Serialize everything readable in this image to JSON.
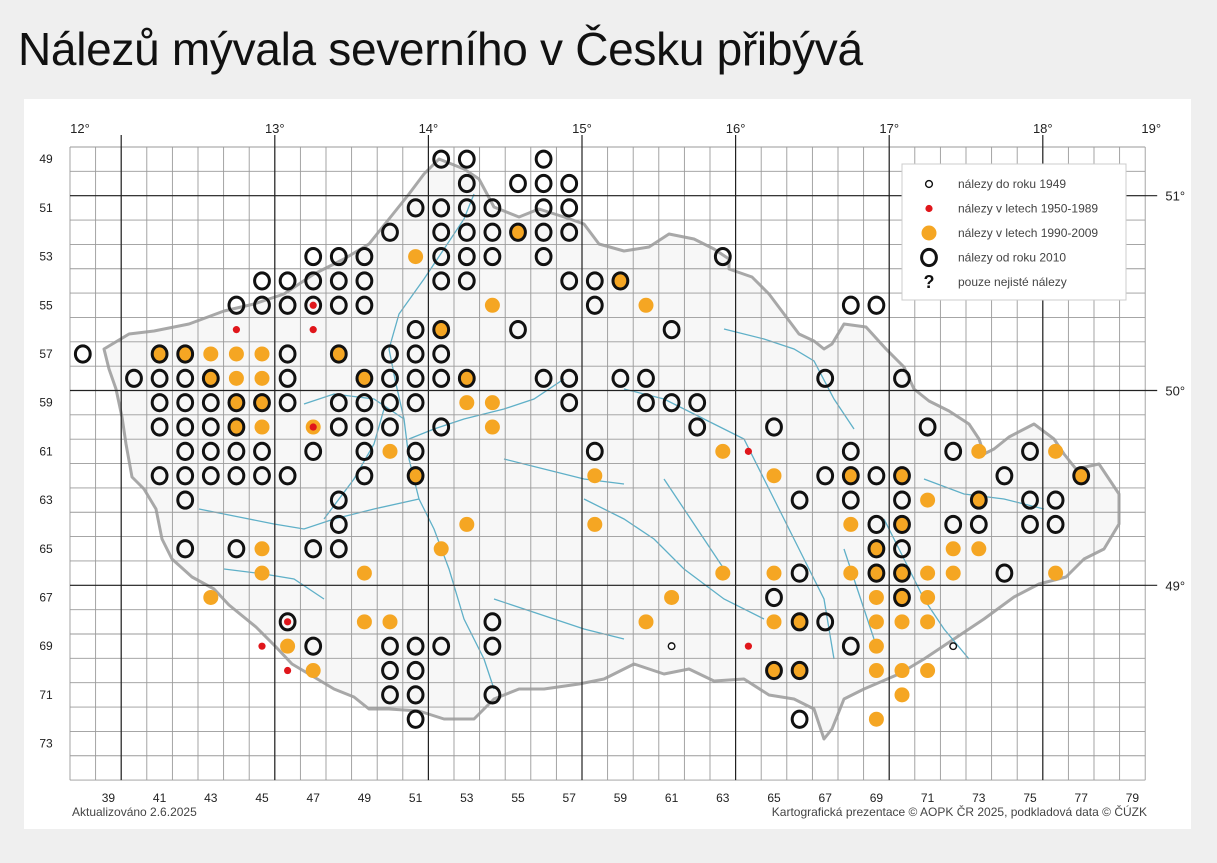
{
  "title": "Nálezů mývala severního v Česku přibývá",
  "footer": {
    "updated": "Aktualizováno 2.6.2025",
    "credit": "Kartografická prezentace © AOPK ČR 2025, podkladová data © ČÚZK"
  },
  "legend": [
    {
      "key": "pre1949",
      "label": "nálezy do roku 1949"
    },
    {
      "key": "r1950",
      "label": "nálezy v letech 1950-1989"
    },
    {
      "key": "r1990",
      "label": "nálezy v letech 1990-2009"
    },
    {
      "key": "post2010",
      "label": "nálezy od roku 2010"
    },
    {
      "key": "uncertain",
      "label": "pouze nejisté nálezy",
      "symbol": "?"
    }
  ],
  "colors": {
    "orange": "#f5a623",
    "red": "#e0161b",
    "ring": "#111111",
    "grid": "#9a9a9a",
    "major_grid": "#222222",
    "rivers": "#5fb0c8",
    "border": "#9a9a9a"
  },
  "axes": {
    "top_lon": [
      "12°",
      "13°",
      "14°",
      "15°",
      "16°",
      "17°",
      "18°",
      "19°"
    ],
    "right_lat": [
      "51°",
      "50°",
      "49°"
    ],
    "left_rows": [
      "49",
      "51",
      "53",
      "55",
      "57",
      "59",
      "61",
      "63",
      "65",
      "67",
      "69",
      "71",
      "73"
    ],
    "bottom_cols": [
      "39",
      "41",
      "43",
      "45",
      "47",
      "49",
      "51",
      "53",
      "55",
      "57",
      "59",
      "61",
      "63",
      "65",
      "67",
      "69",
      "71",
      "73",
      "75",
      "77",
      "79"
    ]
  },
  "grid": {
    "col_start": 38,
    "col_end": 80,
    "row_start": 48,
    "row_end": 74
  },
  "findings": {
    "ring": [
      [
        52,
        48
      ],
      [
        53,
        48
      ],
      [
        56,
        48
      ],
      [
        53,
        49
      ],
      [
        55,
        49
      ],
      [
        56,
        49
      ],
      [
        57,
        49
      ],
      [
        51,
        50
      ],
      [
        52,
        50
      ],
      [
        53,
        50
      ],
      [
        54,
        50
      ],
      [
        56,
        50
      ],
      [
        57,
        50
      ],
      [
        50,
        51
      ],
      [
        52,
        51
      ],
      [
        53,
        51
      ],
      [
        54,
        51
      ],
      [
        55,
        51
      ],
      [
        56,
        51
      ],
      [
        57,
        51
      ],
      [
        47,
        52
      ],
      [
        48,
        52
      ],
      [
        49,
        52
      ],
      [
        52,
        52
      ],
      [
        53,
        52
      ],
      [
        54,
        52
      ],
      [
        56,
        52
      ],
      [
        63,
        52
      ],
      [
        45,
        53
      ],
      [
        46,
        53
      ],
      [
        47,
        53
      ],
      [
        48,
        53
      ],
      [
        49,
        53
      ],
      [
        52,
        53
      ],
      [
        53,
        53
      ],
      [
        57,
        53
      ],
      [
        58,
        53
      ],
      [
        59,
        53
      ],
      [
        44,
        54
      ],
      [
        45,
        54
      ],
      [
        46,
        54
      ],
      [
        47,
        54
      ],
      [
        48,
        54
      ],
      [
        49,
        54
      ],
      [
        58,
        54
      ],
      [
        68,
        54
      ],
      [
        69,
        54
      ],
      [
        51,
        55
      ],
      [
        52,
        55
      ],
      [
        55,
        55
      ],
      [
        61,
        55
      ],
      [
        38,
        56
      ],
      [
        41,
        56
      ],
      [
        42,
        56
      ],
      [
        46,
        56
      ],
      [
        48,
        56
      ],
      [
        50,
        56
      ],
      [
        51,
        56
      ],
      [
        52,
        56
      ],
      [
        40,
        57
      ],
      [
        41,
        57
      ],
      [
        42,
        57
      ],
      [
        43,
        57
      ],
      [
        46,
        57
      ],
      [
        49,
        57
      ],
      [
        50,
        57
      ],
      [
        51,
        57
      ],
      [
        52,
        57
      ],
      [
        53,
        57
      ],
      [
        56,
        57
      ],
      [
        57,
        57
      ],
      [
        59,
        57
      ],
      [
        60,
        57
      ],
      [
        67,
        57
      ],
      [
        70,
        57
      ],
      [
        41,
        58
      ],
      [
        42,
        58
      ],
      [
        43,
        58
      ],
      [
        44,
        58
      ],
      [
        45,
        58
      ],
      [
        46,
        58
      ],
      [
        48,
        58
      ],
      [
        49,
        58
      ],
      [
        50,
        58
      ],
      [
        51,
        58
      ],
      [
        57,
        58
      ],
      [
        60,
        58
      ],
      [
        61,
        58
      ],
      [
        62,
        58
      ],
      [
        41,
        59
      ],
      [
        42,
        59
      ],
      [
        43,
        59
      ],
      [
        44,
        59
      ],
      [
        48,
        59
      ],
      [
        49,
        59
      ],
      [
        50,
        59
      ],
      [
        52,
        59
      ],
      [
        62,
        59
      ],
      [
        65,
        59
      ],
      [
        71,
        59
      ],
      [
        42,
        60
      ],
      [
        43,
        60
      ],
      [
        44,
        60
      ],
      [
        45,
        60
      ],
      [
        47,
        60
      ],
      [
        49,
        60
      ],
      [
        51,
        60
      ],
      [
        58,
        60
      ],
      [
        68,
        60
      ],
      [
        72,
        60
      ],
      [
        75,
        60
      ],
      [
        41,
        61
      ],
      [
        42,
        61
      ],
      [
        43,
        61
      ],
      [
        44,
        61
      ],
      [
        45,
        61
      ],
      [
        46,
        61
      ],
      [
        49,
        61
      ],
      [
        51,
        61
      ],
      [
        67,
        61
      ],
      [
        68,
        61
      ],
      [
        69,
        61
      ],
      [
        70,
        61
      ],
      [
        74,
        61
      ],
      [
        77,
        61
      ],
      [
        42,
        62
      ],
      [
        48,
        62
      ],
      [
        66,
        62
      ],
      [
        68,
        62
      ],
      [
        70,
        62
      ],
      [
        73,
        62
      ],
      [
        75,
        62
      ],
      [
        76,
        62
      ],
      [
        48,
        63
      ],
      [
        69,
        63
      ],
      [
        70,
        63
      ],
      [
        72,
        63
      ],
      [
        73,
        63
      ],
      [
        75,
        63
      ],
      [
        76,
        63
      ],
      [
        42,
        64
      ],
      [
        44,
        64
      ],
      [
        47,
        64
      ],
      [
        48,
        64
      ],
      [
        69,
        64
      ],
      [
        70,
        64
      ],
      [
        66,
        65
      ],
      [
        69,
        65
      ],
      [
        70,
        65
      ],
      [
        74,
        65
      ],
      [
        65,
        66
      ],
      [
        70,
        66
      ],
      [
        46,
        67
      ],
      [
        54,
        67
      ],
      [
        66,
        67
      ],
      [
        67,
        67
      ],
      [
        47,
        68
      ],
      [
        50,
        68
      ],
      [
        51,
        68
      ],
      [
        52,
        68
      ],
      [
        54,
        68
      ],
      [
        68,
        68
      ],
      [
        50,
        69
      ],
      [
        51,
        69
      ],
      [
        65,
        69
      ],
      [
        66,
        69
      ],
      [
        50,
        70
      ],
      [
        51,
        70
      ],
      [
        54,
        70
      ],
      [
        51,
        71
      ],
      [
        66,
        71
      ]
    ],
    "orange": [
      [
        55,
        51
      ],
      [
        51,
        52
      ],
      [
        59,
        53
      ],
      [
        54,
        54
      ],
      [
        60,
        54
      ],
      [
        52,
        55
      ],
      [
        41,
        56
      ],
      [
        42,
        56
      ],
      [
        43,
        56
      ],
      [
        44,
        56
      ],
      [
        45,
        56
      ],
      [
        48,
        56
      ],
      [
        43,
        57
      ],
      [
        44,
        57
      ],
      [
        45,
        57
      ],
      [
        49,
        57
      ],
      [
        53,
        57
      ],
      [
        44,
        58
      ],
      [
        45,
        58
      ],
      [
        53,
        58
      ],
      [
        54,
        58
      ],
      [
        44,
        59
      ],
      [
        45,
        59
      ],
      [
        47,
        59
      ],
      [
        54,
        59
      ],
      [
        50,
        60
      ],
      [
        63,
        60
      ],
      [
        73,
        60
      ],
      [
        76,
        60
      ],
      [
        51,
        61
      ],
      [
        58,
        61
      ],
      [
        65,
        61
      ],
      [
        68,
        61
      ],
      [
        70,
        61
      ],
      [
        77,
        61
      ],
      [
        71,
        62
      ],
      [
        73,
        62
      ],
      [
        53,
        63
      ],
      [
        58,
        63
      ],
      [
        68,
        63
      ],
      [
        70,
        63
      ],
      [
        45,
        64
      ],
      [
        52,
        64
      ],
      [
        69,
        64
      ],
      [
        72,
        64
      ],
      [
        73,
        64
      ],
      [
        45,
        65
      ],
      [
        49,
        65
      ],
      [
        63,
        65
      ],
      [
        65,
        65
      ],
      [
        68,
        65
      ],
      [
        69,
        65
      ],
      [
        70,
        65
      ],
      [
        71,
        65
      ],
      [
        72,
        65
      ],
      [
        76,
        65
      ],
      [
        43,
        66
      ],
      [
        61,
        66
      ],
      [
        69,
        66
      ],
      [
        70,
        66
      ],
      [
        71,
        66
      ],
      [
        49,
        67
      ],
      [
        50,
        67
      ],
      [
        60,
        67
      ],
      [
        65,
        67
      ],
      [
        66,
        67
      ],
      [
        69,
        67
      ],
      [
        70,
        67
      ],
      [
        71,
        67
      ],
      [
        46,
        68
      ],
      [
        69,
        68
      ],
      [
        47,
        69
      ],
      [
        65,
        69
      ],
      [
        66,
        69
      ],
      [
        69,
        69
      ],
      [
        70,
        69
      ],
      [
        71,
        69
      ],
      [
        70,
        70
      ],
      [
        69,
        71
      ]
    ],
    "red": [
      [
        47,
        54
      ],
      [
        44,
        55
      ],
      [
        47,
        55
      ],
      [
        47,
        59
      ],
      [
        64,
        60
      ],
      [
        46,
        67
      ],
      [
        45,
        68
      ],
      [
        64,
        68
      ],
      [
        46,
        69
      ]
    ],
    "small_ring": [
      [
        61,
        68
      ],
      [
        72,
        68
      ]
    ]
  }
}
